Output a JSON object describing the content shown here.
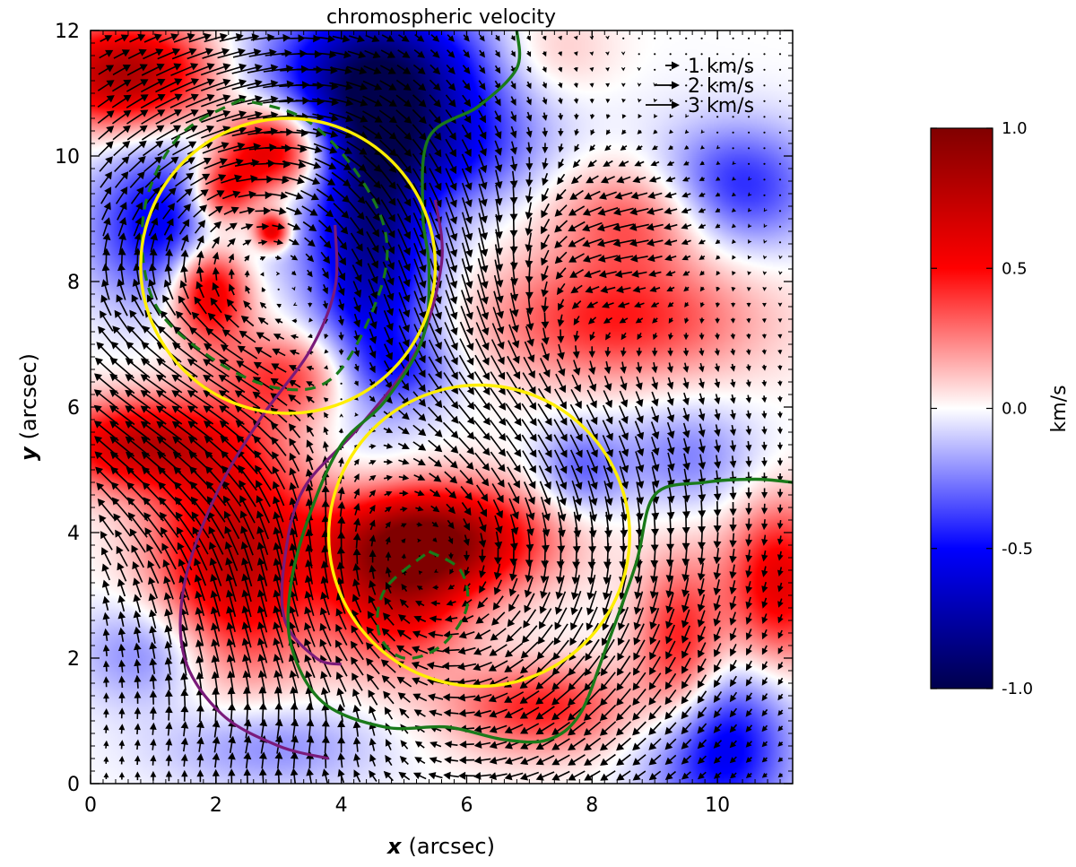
{
  "chart_data": {
    "type": "heatmap",
    "title": "chromospheric velocity",
    "xlabel_var": "x",
    "xlabel_unit": "(arcsec)",
    "ylabel_var": "y",
    "ylabel_unit": "(arcsec)",
    "xlim": [
      0,
      11.2
    ],
    "ylim": [
      0,
      12
    ],
    "x_ticks": [
      0,
      2,
      4,
      6,
      8,
      10
    ],
    "y_ticks": [
      0,
      2,
      4,
      6,
      8,
      10,
      12
    ],
    "x_tick_labels": [
      "0",
      "2",
      "4",
      "6",
      "8",
      "10"
    ],
    "y_tick_labels": [
      "0",
      "2",
      "4",
      "6",
      "8",
      "10",
      "12"
    ],
    "colorbar": {
      "label": "km/s",
      "range": [
        -1.0,
        1.0
      ],
      "ticks": [
        1.0,
        0.5,
        0.0,
        -0.5,
        -1.0
      ],
      "tick_labels": [
        "1.0",
        "0.5",
        "0.0",
        "-0.5",
        "-1.0"
      ],
      "colormap": "seismic",
      "colors": [
        "#00004c",
        "#0000ff",
        "#ffffff",
        "#ff0000",
        "#800000"
      ]
    },
    "velocity_reference": [
      {
        "label": "1 km/s",
        "speed": 1
      },
      {
        "label": "2 km/s",
        "speed": 2
      },
      {
        "label": "3 km/s",
        "speed": 3
      }
    ],
    "heat_blobs": [
      {
        "x": 0.6,
        "y": 11.3,
        "sx": 1.0,
        "sy": 0.6,
        "v": 0.85
      },
      {
        "x": 4.8,
        "y": 11.3,
        "sx": 1.6,
        "sy": 0.8,
        "v": -0.7
      },
      {
        "x": 4.5,
        "y": 9.0,
        "sx": 0.7,
        "sy": 1.8,
        "v": -0.85
      },
      {
        "x": 1.3,
        "y": 8.9,
        "sx": 0.9,
        "sy": 0.9,
        "v": -0.6
      },
      {
        "x": 2.9,
        "y": 10.1,
        "sx": 0.6,
        "sy": 0.5,
        "v": 0.75
      },
      {
        "x": 2.1,
        "y": 9.4,
        "sx": 0.4,
        "sy": 0.4,
        "v": 0.65
      },
      {
        "x": 1.9,
        "y": 7.9,
        "sx": 0.45,
        "sy": 0.6,
        "v": 0.8
      },
      {
        "x": 2.9,
        "y": 8.8,
        "sx": 0.2,
        "sy": 0.2,
        "v": 0.7
      },
      {
        "x": 0.8,
        "y": 5.4,
        "sx": 1.0,
        "sy": 0.5,
        "v": 0.7
      },
      {
        "x": 2.3,
        "y": 3.6,
        "sx": 0.9,
        "sy": 1.3,
        "v": 0.75
      },
      {
        "x": 5.5,
        "y": 3.9,
        "sx": 1.2,
        "sy": 0.6,
        "v": 0.9
      },
      {
        "x": 4.9,
        "y": 3.0,
        "sx": 0.8,
        "sy": 0.8,
        "v": 0.6
      },
      {
        "x": 8.4,
        "y": 7.4,
        "sx": 1.5,
        "sy": 0.7,
        "v": 0.45
      },
      {
        "x": 8.7,
        "y": 9.0,
        "sx": 0.9,
        "sy": 0.6,
        "v": 0.35
      },
      {
        "x": 10.3,
        "y": 9.5,
        "sx": 0.9,
        "sy": 0.7,
        "v": -0.45
      },
      {
        "x": 10.0,
        "y": 0.6,
        "sx": 0.8,
        "sy": 0.9,
        "v": -0.6
      },
      {
        "x": 11.0,
        "y": 3.2,
        "sx": 0.6,
        "sy": 0.9,
        "v": 0.6
      },
      {
        "x": 9.4,
        "y": 2.1,
        "sx": 0.5,
        "sy": 1.0,
        "v": 0.5
      },
      {
        "x": 7.2,
        "y": 1.2,
        "sx": 1.0,
        "sy": 0.5,
        "v": 0.45
      },
      {
        "x": 1.0,
        "y": 2.1,
        "sx": 0.8,
        "sy": 0.6,
        "v": -0.3
      },
      {
        "x": 3.2,
        "y": 6.5,
        "sx": 0.8,
        "sy": 0.5,
        "v": 0.4
      },
      {
        "x": 5.8,
        "y": 10.0,
        "sx": 0.9,
        "sy": 0.6,
        "v": -0.35
      },
      {
        "x": 7.2,
        "y": 11.6,
        "sx": 0.8,
        "sy": 0.6,
        "v": 0.25
      },
      {
        "x": 9.5,
        "y": 5.2,
        "sx": 0.8,
        "sy": 0.6,
        "v": -0.25
      },
      {
        "x": 7.8,
        "y": 5.0,
        "sx": 0.5,
        "sy": 0.5,
        "v": -0.3
      },
      {
        "x": 2.8,
        "y": 0.6,
        "sx": 1.2,
        "sy": 0.5,
        "v": -0.25
      },
      {
        "x": 5.0,
        "y": 6.6,
        "sx": 0.6,
        "sy": 0.4,
        "v": -0.25
      }
    ],
    "vortices": [
      {
        "x": 2.8,
        "y": 8.3,
        "strength": 2.0,
        "radius": 2.3,
        "sense": "clockwise",
        "inflow": 0.4
      },
      {
        "x": 5.5,
        "y": 3.3,
        "strength": 2.6,
        "radius": 2.6,
        "sense": "clockwise",
        "inflow": 0.9
      }
    ],
    "flow_patches": [
      {
        "x": 1.4,
        "y": 6.3,
        "sx": 1.5,
        "sy": 1.2,
        "u": -2.4,
        "v": 0.0
      },
      {
        "x": 1.3,
        "y": 4.6,
        "sx": 1.2,
        "sy": 1.0,
        "u": -1.6,
        "v": 0.9
      },
      {
        "x": 8.3,
        "y": 9.0,
        "sx": 1.0,
        "sy": 0.8,
        "u": -2.2,
        "v": 0.1
      },
      {
        "x": 8.1,
        "y": 7.6,
        "sx": 0.9,
        "sy": 0.8,
        "u": -1.5,
        "v": 0.9
      },
      {
        "x": 6.0,
        "y": 8.0,
        "sx": 0.9,
        "sy": 1.2,
        "u": 0.0,
        "v": -1.2
      },
      {
        "x": 4.0,
        "y": 0.7,
        "sx": 1.8,
        "sy": 0.7,
        "u": 2.1,
        "v": 0.1
      },
      {
        "x": 2.3,
        "y": 11.1,
        "sx": 1.4,
        "sy": 0.8,
        "u": 1.4,
        "v": 0.9
      }
    ],
    "yellow_circles": [
      {
        "cx": 3.15,
        "cy": 8.25,
        "r": 2.35
      },
      {
        "cx": 6.2,
        "cy": 3.95,
        "r": 2.4
      }
    ],
    "green_dashed_arcs": [
      {
        "points": [
          [
            2.4,
            10.9
          ],
          [
            1.4,
            10.3
          ],
          [
            0.85,
            9.1
          ],
          [
            1.0,
            7.7
          ],
          [
            1.9,
            6.8
          ],
          [
            3.0,
            6.3
          ],
          [
            3.9,
            6.5
          ],
          [
            4.6,
            7.8
          ],
          [
            4.7,
            8.8
          ],
          [
            4.2,
            9.8
          ],
          [
            3.4,
            10.6
          ],
          [
            2.4,
            10.9
          ]
        ]
      },
      {
        "points": [
          [
            5.4,
            3.7
          ],
          [
            5.9,
            3.4
          ],
          [
            6.0,
            2.8
          ],
          [
            5.6,
            2.2
          ],
          [
            5.0,
            2.0
          ],
          [
            4.6,
            2.4
          ],
          [
            4.7,
            3.1
          ],
          [
            5.4,
            3.7
          ]
        ]
      }
    ],
    "green_solid_lines": [
      {
        "points": [
          [
            6.8,
            12.0
          ],
          [
            6.8,
            11.4
          ],
          [
            6.2,
            10.8
          ],
          [
            5.4,
            10.3
          ],
          [
            5.3,
            9.1
          ],
          [
            5.4,
            8.2
          ],
          [
            5.3,
            7.1
          ],
          [
            4.7,
            6.1
          ],
          [
            4.0,
            5.4
          ],
          [
            3.5,
            4.3
          ],
          [
            3.2,
            3.2
          ],
          [
            3.2,
            2.2
          ],
          [
            3.7,
            1.3
          ],
          [
            4.7,
            0.9
          ],
          [
            5.7,
            0.9
          ],
          [
            6.6,
            0.7
          ],
          [
            7.3,
            0.7
          ],
          [
            7.8,
            1.1
          ],
          [
            8.2,
            2.1
          ],
          [
            8.7,
            3.5
          ],
          [
            9.0,
            4.6
          ],
          [
            9.8,
            4.8
          ],
          [
            10.6,
            4.85
          ],
          [
            11.2,
            4.8
          ]
        ]
      }
    ],
    "purple_lines": [
      {
        "points": [
          [
            3.9,
            8.9
          ],
          [
            3.9,
            7.9
          ],
          [
            3.5,
            6.9
          ],
          [
            2.7,
            5.8
          ],
          [
            2.0,
            4.6
          ],
          [
            1.5,
            3.2
          ],
          [
            1.5,
            2.0
          ],
          [
            2.1,
            1.1
          ],
          [
            3.0,
            0.6
          ],
          [
            3.8,
            0.4
          ]
        ]
      },
      {
        "points": [
          [
            5.5,
            9.3
          ],
          [
            5.6,
            8.3
          ],
          [
            5.2,
            6.9
          ],
          [
            4.3,
            5.7
          ],
          [
            3.4,
            4.7
          ],
          [
            3.1,
            3.6
          ],
          [
            3.1,
            2.6
          ],
          [
            3.6,
            2.0
          ],
          [
            4.0,
            1.9
          ]
        ]
      }
    ]
  }
}
